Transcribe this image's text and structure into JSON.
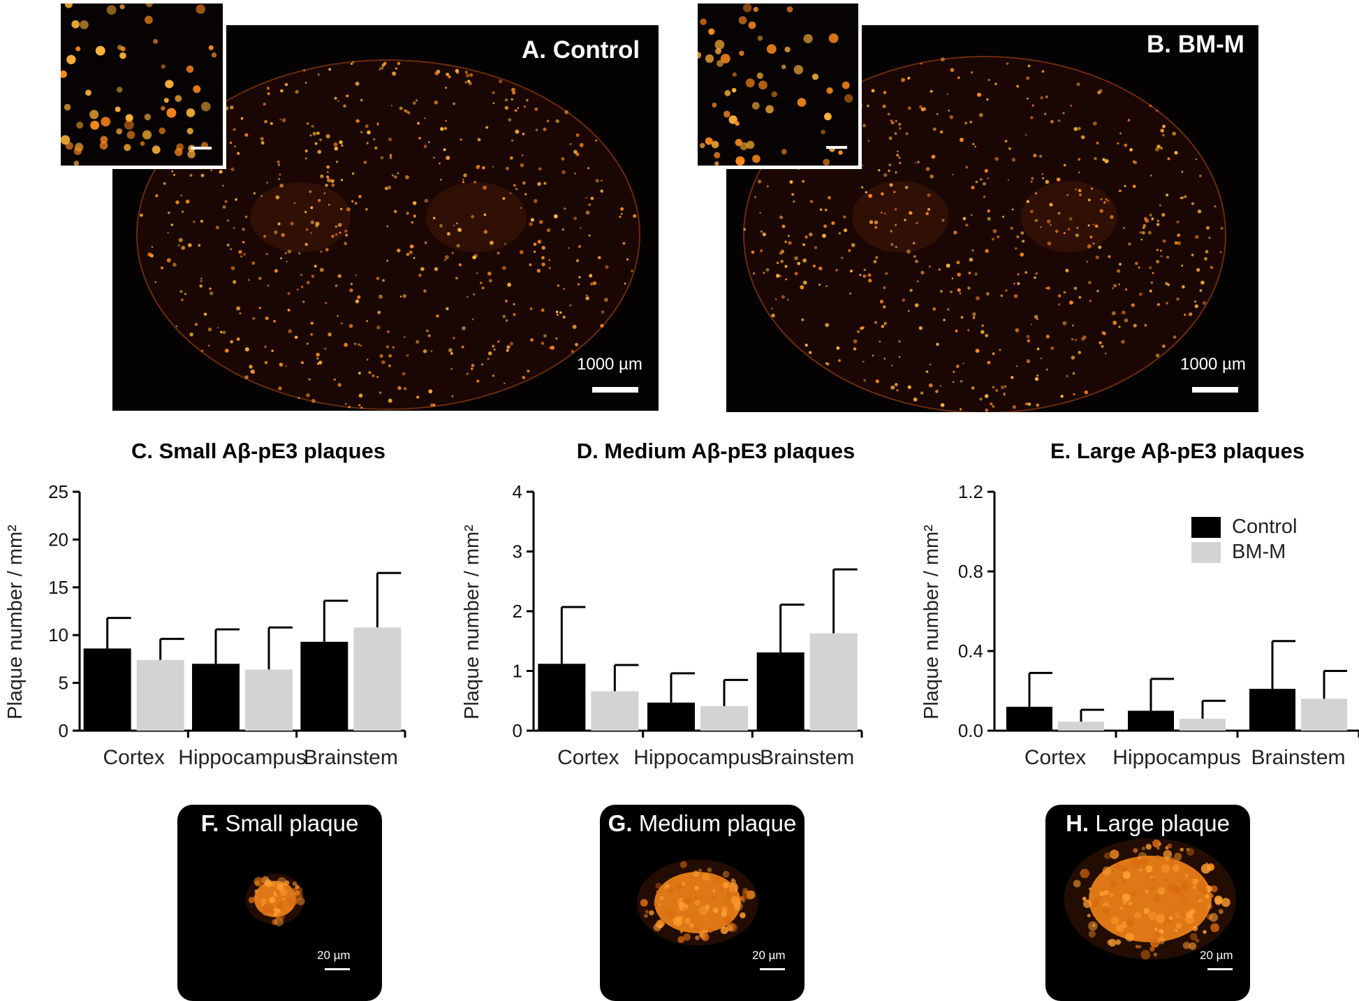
{
  "colors": {
    "control": "#000000",
    "bmm": "#d3d3d3",
    "plaque": "#ff8c1a"
  },
  "micrographs": [
    {
      "title": "A. Control",
      "scale": "1000 µm"
    },
    {
      "title": "B. BM-M",
      "scale": "1000 µm"
    }
  ],
  "legend": {
    "items": [
      "Control",
      "BM-M"
    ]
  },
  "ylabel": "Plaque number / mm²",
  "chart_data": [
    {
      "type": "bar",
      "title": "C. Small Aβ-pE3 plaques",
      "ylabel": "Plaque number / mm²",
      "categories": [
        "Cortex",
        "Hippocampus",
        "Brainstem"
      ],
      "ylim": [
        0,
        25
      ],
      "yticks": [
        "0",
        "5",
        "10",
        "15",
        "20",
        "25"
      ],
      "ytick_values": [
        0,
        5,
        10,
        15,
        20,
        25
      ],
      "series": [
        {
          "name": "Control",
          "values": [
            8.6,
            7.0,
            9.3
          ],
          "errors": [
            3.2,
            3.6,
            4.3
          ]
        },
        {
          "name": "BM-M",
          "values": [
            7.4,
            6.4,
            10.8
          ],
          "errors": [
            2.2,
            4.4,
            5.7
          ]
        }
      ]
    },
    {
      "type": "bar",
      "title": "D. Medium Aβ-pE3 plaques",
      "ylabel": "Plaque number / mm²",
      "categories": [
        "Cortex",
        "Hippocampus",
        "Brainstem"
      ],
      "ylim": [
        0,
        4
      ],
      "yticks": [
        "0",
        "1",
        "2",
        "3",
        "4"
      ],
      "ytick_values": [
        0,
        1,
        2,
        3,
        4
      ],
      "series": [
        {
          "name": "Control",
          "values": [
            1.12,
            0.47,
            1.31
          ],
          "errors": [
            0.95,
            0.49,
            0.8
          ]
        },
        {
          "name": "BM-M",
          "values": [
            0.66,
            0.41,
            1.63
          ],
          "errors": [
            0.44,
            0.44,
            1.07
          ]
        }
      ]
    },
    {
      "type": "bar",
      "title": "E. Large Aβ-pE3 plaques",
      "ylabel": "Plaque number / mm²",
      "categories": [
        "Cortex",
        "Hippocampus",
        "Brainstem"
      ],
      "ylim": [
        0,
        1.2
      ],
      "yticks": [
        "0.0",
        "0.4",
        "0.8",
        "1.2"
      ],
      "ytick_values": [
        0,
        0.4,
        0.8,
        1.2
      ],
      "legend": "top-right",
      "series": [
        {
          "name": "Control",
          "values": [
            0.12,
            0.1,
            0.21
          ],
          "errors": [
            0.17,
            0.16,
            0.24
          ]
        },
        {
          "name": "BM-M",
          "values": [
            0.045,
            0.06,
            0.16
          ],
          "errors": [
            0.06,
            0.09,
            0.14
          ]
        }
      ]
    }
  ],
  "samples": [
    {
      "letter": "F.",
      "label": "Small plaque",
      "scale": "20 µm"
    },
    {
      "letter": "G.",
      "label": "Medium plaque",
      "scale": "20 µm"
    },
    {
      "letter": "H.",
      "label": "Large plaque",
      "scale": "20 µm"
    }
  ]
}
